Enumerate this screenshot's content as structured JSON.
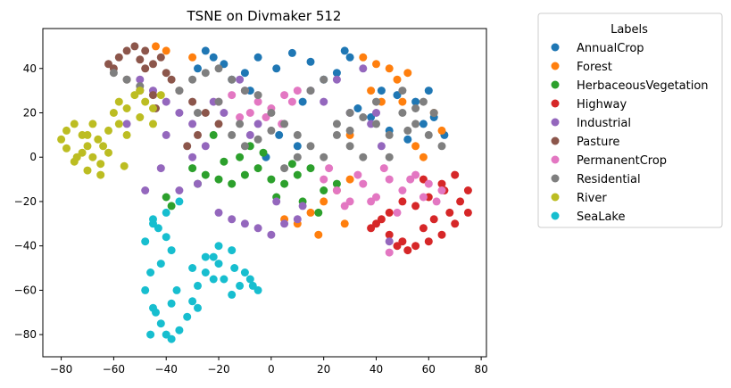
{
  "chart_data": {
    "type": "scatter",
    "title": "TSNE on Divmaker 512",
    "xlabel": "",
    "ylabel": "",
    "xlim": [
      -87,
      82
    ],
    "ylim": [
      -90,
      58
    ],
    "xticks": [
      -80,
      -60,
      -40,
      -20,
      0,
      20,
      40,
      60,
      80
    ],
    "yticks": [
      -80,
      -60,
      -40,
      -20,
      0,
      20,
      40
    ],
    "grid": false,
    "legend": {
      "title": "Labels",
      "placement": "outside-right"
    },
    "series": [
      {
        "name": "AnnualCrop",
        "color": "#1f77b4",
        "x": [
          -25,
          -22,
          -18,
          -28,
          -10,
          -5,
          2,
          8,
          15,
          20,
          25,
          30,
          42,
          48,
          55,
          60,
          62,
          66,
          10,
          3,
          -2,
          38,
          45,
          52,
          12,
          -15,
          28,
          58,
          33,
          -8
        ],
        "y": [
          48,
          45,
          42,
          40,
          38,
          45,
          40,
          47,
          43,
          35,
          38,
          45,
          30,
          28,
          25,
          30,
          18,
          10,
          5,
          10,
          0,
          18,
          12,
          8,
          25,
          35,
          48,
          15,
          22,
          30
        ]
      },
      {
        "name": "Forest",
        "color": "#ff7f0e",
        "x": [
          -44,
          -40,
          -30,
          35,
          40,
          45,
          48,
          52,
          38,
          42,
          30,
          25,
          62,
          65,
          20,
          15,
          28,
          10,
          5,
          18,
          55,
          58,
          50,
          30
        ],
        "y": [
          50,
          48,
          45,
          45,
          42,
          40,
          35,
          38,
          30,
          25,
          -10,
          -15,
          20,
          12,
          -20,
          -25,
          -30,
          -30,
          -28,
          -35,
          5,
          0,
          25,
          10
        ]
      },
      {
        "name": "HerbaceousVegetation",
        "color": "#2ca02c",
        "x": [
          -30,
          -25,
          -20,
          -15,
          -10,
          -5,
          0,
          5,
          10,
          15,
          20,
          -12,
          -8,
          -18,
          2,
          12,
          -22,
          -40,
          -38,
          18,
          8,
          -3,
          25,
          -28
        ],
        "y": [
          -5,
          -8,
          -10,
          -12,
          -8,
          -5,
          -10,
          -12,
          -8,
          -5,
          -15,
          0,
          5,
          -2,
          -18,
          -20,
          10,
          -18,
          -22,
          -25,
          -3,
          2,
          -12,
          -12
        ]
      },
      {
        "name": "Highway",
        "color": "#d62728",
        "x": [
          40,
          45,
          50,
          55,
          60,
          65,
          70,
          72,
          75,
          68,
          62,
          58,
          52,
          48,
          42,
          38,
          55,
          60,
          65,
          70,
          45,
          50,
          75,
          66,
          58
        ],
        "y": [
          -30,
          -35,
          -38,
          -40,
          -38,
          -35,
          -30,
          -20,
          -15,
          -25,
          -28,
          -32,
          -42,
          -40,
          -28,
          -32,
          -22,
          -18,
          -12,
          -8,
          -25,
          -20,
          -25,
          -15,
          -10
        ]
      },
      {
        "name": "Industrial",
        "color": "#9467bd",
        "x": [
          -50,
          -45,
          -40,
          -35,
          -30,
          -35,
          -28,
          -20,
          -15,
          -10,
          -5,
          0,
          5,
          10,
          -30,
          -25,
          -40,
          -55,
          15,
          20,
          30,
          25,
          35,
          40,
          -8,
          -18,
          -48,
          -42,
          -22,
          -12,
          2,
          12,
          45,
          38,
          42,
          -5
        ],
        "y": [
          35,
          30,
          25,
          20,
          15,
          -15,
          -12,
          -25,
          -28,
          -30,
          -32,
          -35,
          -30,
          -28,
          0,
          5,
          10,
          15,
          30,
          25,
          20,
          35,
          40,
          20,
          10,
          20,
          -15,
          -5,
          25,
          35,
          -20,
          -22,
          -38,
          15,
          5,
          15
        ]
      },
      {
        "name": "Pasture",
        "color": "#8c564b",
        "x": [
          -62,
          -58,
          -55,
          -52,
          -50,
          -48,
          -45,
          -42,
          -40,
          -38,
          -55,
          -50,
          -45,
          -35,
          -30,
          -25,
          -20,
          -28,
          -32,
          -48,
          -60,
          -44
        ],
        "y": [
          42,
          45,
          48,
          50,
          44,
          40,
          42,
          45,
          38,
          35,
          35,
          30,
          28,
          30,
          25,
          20,
          15,
          10,
          5,
          48,
          40,
          22
        ]
      },
      {
        "name": "PermanentCrop",
        "color": "#e377c2",
        "x": [
          -20,
          -15,
          -10,
          -5,
          0,
          5,
          10,
          -8,
          -2,
          4,
          20,
          25,
          30,
          35,
          40,
          45,
          50,
          55,
          60,
          65,
          28,
          38,
          48,
          58,
          22,
          33,
          43,
          53,
          63,
          45,
          -12,
          8
        ],
        "y": [
          25,
          28,
          30,
          25,
          22,
          28,
          30,
          20,
          18,
          15,
          -10,
          -15,
          -20,
          -12,
          -18,
          -10,
          -15,
          -8,
          -12,
          -15,
          -22,
          -20,
          -25,
          -18,
          -5,
          -8,
          -5,
          -10,
          -20,
          -43,
          18,
          25
        ]
      },
      {
        "name": "Residential",
        "color": "#7f7f7f",
        "x": [
          -60,
          -55,
          -50,
          -35,
          -30,
          -25,
          -20,
          -15,
          -10,
          -5,
          0,
          5,
          10,
          15,
          20,
          25,
          30,
          35,
          40,
          45,
          50,
          55,
          60,
          65,
          -15,
          -10,
          -5,
          0,
          5,
          10,
          15,
          20,
          30,
          35,
          40,
          45,
          50,
          55,
          -28,
          -20,
          -12,
          62,
          58,
          52,
          30,
          25
        ],
        "y": [
          38,
          35,
          32,
          30,
          35,
          38,
          40,
          35,
          30,
          28,
          20,
          15,
          10,
          5,
          0,
          15,
          20,
          18,
          15,
          10,
          20,
          15,
          10,
          5,
          10,
          5,
          8,
          12,
          -5,
          0,
          30,
          35,
          5,
          0,
          25,
          0,
          30,
          22,
          20,
          25,
          15,
          20,
          25,
          12,
          12,
          10
        ]
      },
      {
        "name": "River",
        "color": "#bcbd22",
        "x": [
          -80,
          -78,
          -75,
          -72,
          -70,
          -68,
          -65,
          -62,
          -60,
          -58,
          -55,
          -52,
          -50,
          -48,
          -45,
          -75,
          -70,
          -65,
          -72,
          -68,
          -78,
          -74,
          -66,
          -62,
          -58,
          -55,
          -50,
          -45,
          -42,
          -70,
          -64,
          -56
        ],
        "y": [
          8,
          12,
          15,
          10,
          5,
          0,
          -3,
          2,
          20,
          25,
          22,
          28,
          30,
          25,
          22,
          -2,
          -6,
          -8,
          2,
          15,
          4,
          0,
          8,
          12,
          15,
          10,
          18,
          15,
          28,
          10,
          5,
          -4
        ]
      },
      {
        "name": "SeaLake",
        "color": "#17becf",
        "x": [
          -45,
          -43,
          -40,
          -38,
          -42,
          -46,
          -48,
          -45,
          -42,
          -40,
          -38,
          -35,
          -32,
          -30,
          -28,
          -25,
          -22,
          -20,
          -18,
          -15,
          -12,
          -10,
          -8,
          -5,
          -48,
          -45,
          -40,
          -35,
          -30,
          -25,
          -20,
          -15,
          -44,
          -36,
          -28,
          -22,
          -14,
          -7,
          -46,
          -38
        ],
        "y": [
          -28,
          -32,
          -36,
          -42,
          -48,
          -52,
          -60,
          -68,
          -75,
          -80,
          -82,
          -78,
          -72,
          -65,
          -58,
          -52,
          -45,
          -40,
          -55,
          -62,
          -58,
          -52,
          -55,
          -60,
          -38,
          -30,
          -25,
          -20,
          -50,
          -45,
          -48,
          -42,
          -70,
          -60,
          -68,
          -55,
          -50,
          -58,
          -80,
          -66
        ]
      }
    ]
  }
}
